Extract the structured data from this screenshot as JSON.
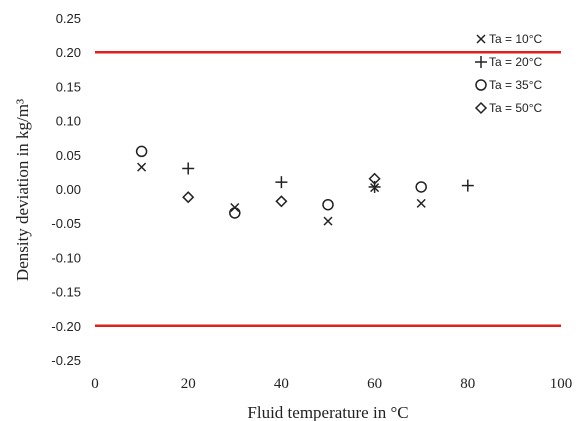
{
  "chart_data": {
    "type": "scatter",
    "xlabel": "Fluid temperature in °C",
    "ylabel": "Density deviation in kg/m³",
    "xlim": [
      0,
      100
    ],
    "ylim": [
      -0.25,
      0.25
    ],
    "x_ticks": [
      "0",
      "20",
      "40",
      "60",
      "80",
      "100"
    ],
    "y_ticks": [
      "0.25",
      "0.20",
      "0.15",
      "0.10",
      "0.05",
      "0.00",
      "-0.05",
      "-0.10",
      "-0.15",
      "-0.20",
      "-0.25"
    ],
    "grid": false,
    "legend_position": "top-right",
    "limit_lines": [
      {
        "y": 0.2,
        "color": "#e0201b"
      },
      {
        "y": -0.2,
        "color": "#e0201b"
      }
    ],
    "series": [
      {
        "name": "Ta = 10°C",
        "marker": "x",
        "x": [
          10,
          30,
          50,
          60,
          70
        ],
        "y": [
          0.032,
          -0.027,
          -0.047,
          0.002,
          -0.021
        ]
      },
      {
        "name": "Ta = 20°C",
        "marker": "plus",
        "x": [
          20,
          40,
          60,
          80
        ],
        "y": [
          0.03,
          0.01,
          0.003,
          0.005
        ]
      },
      {
        "name": "Ta = 35°C",
        "marker": "circle",
        "x": [
          10,
          30,
          50,
          70
        ],
        "y": [
          0.055,
          -0.035,
          -0.023,
          0.003
        ]
      },
      {
        "name": "Ta = 50°C",
        "marker": "diamond",
        "x": [
          20,
          40,
          60
        ],
        "y": [
          -0.012,
          -0.018,
          0.015
        ]
      }
    ]
  }
}
